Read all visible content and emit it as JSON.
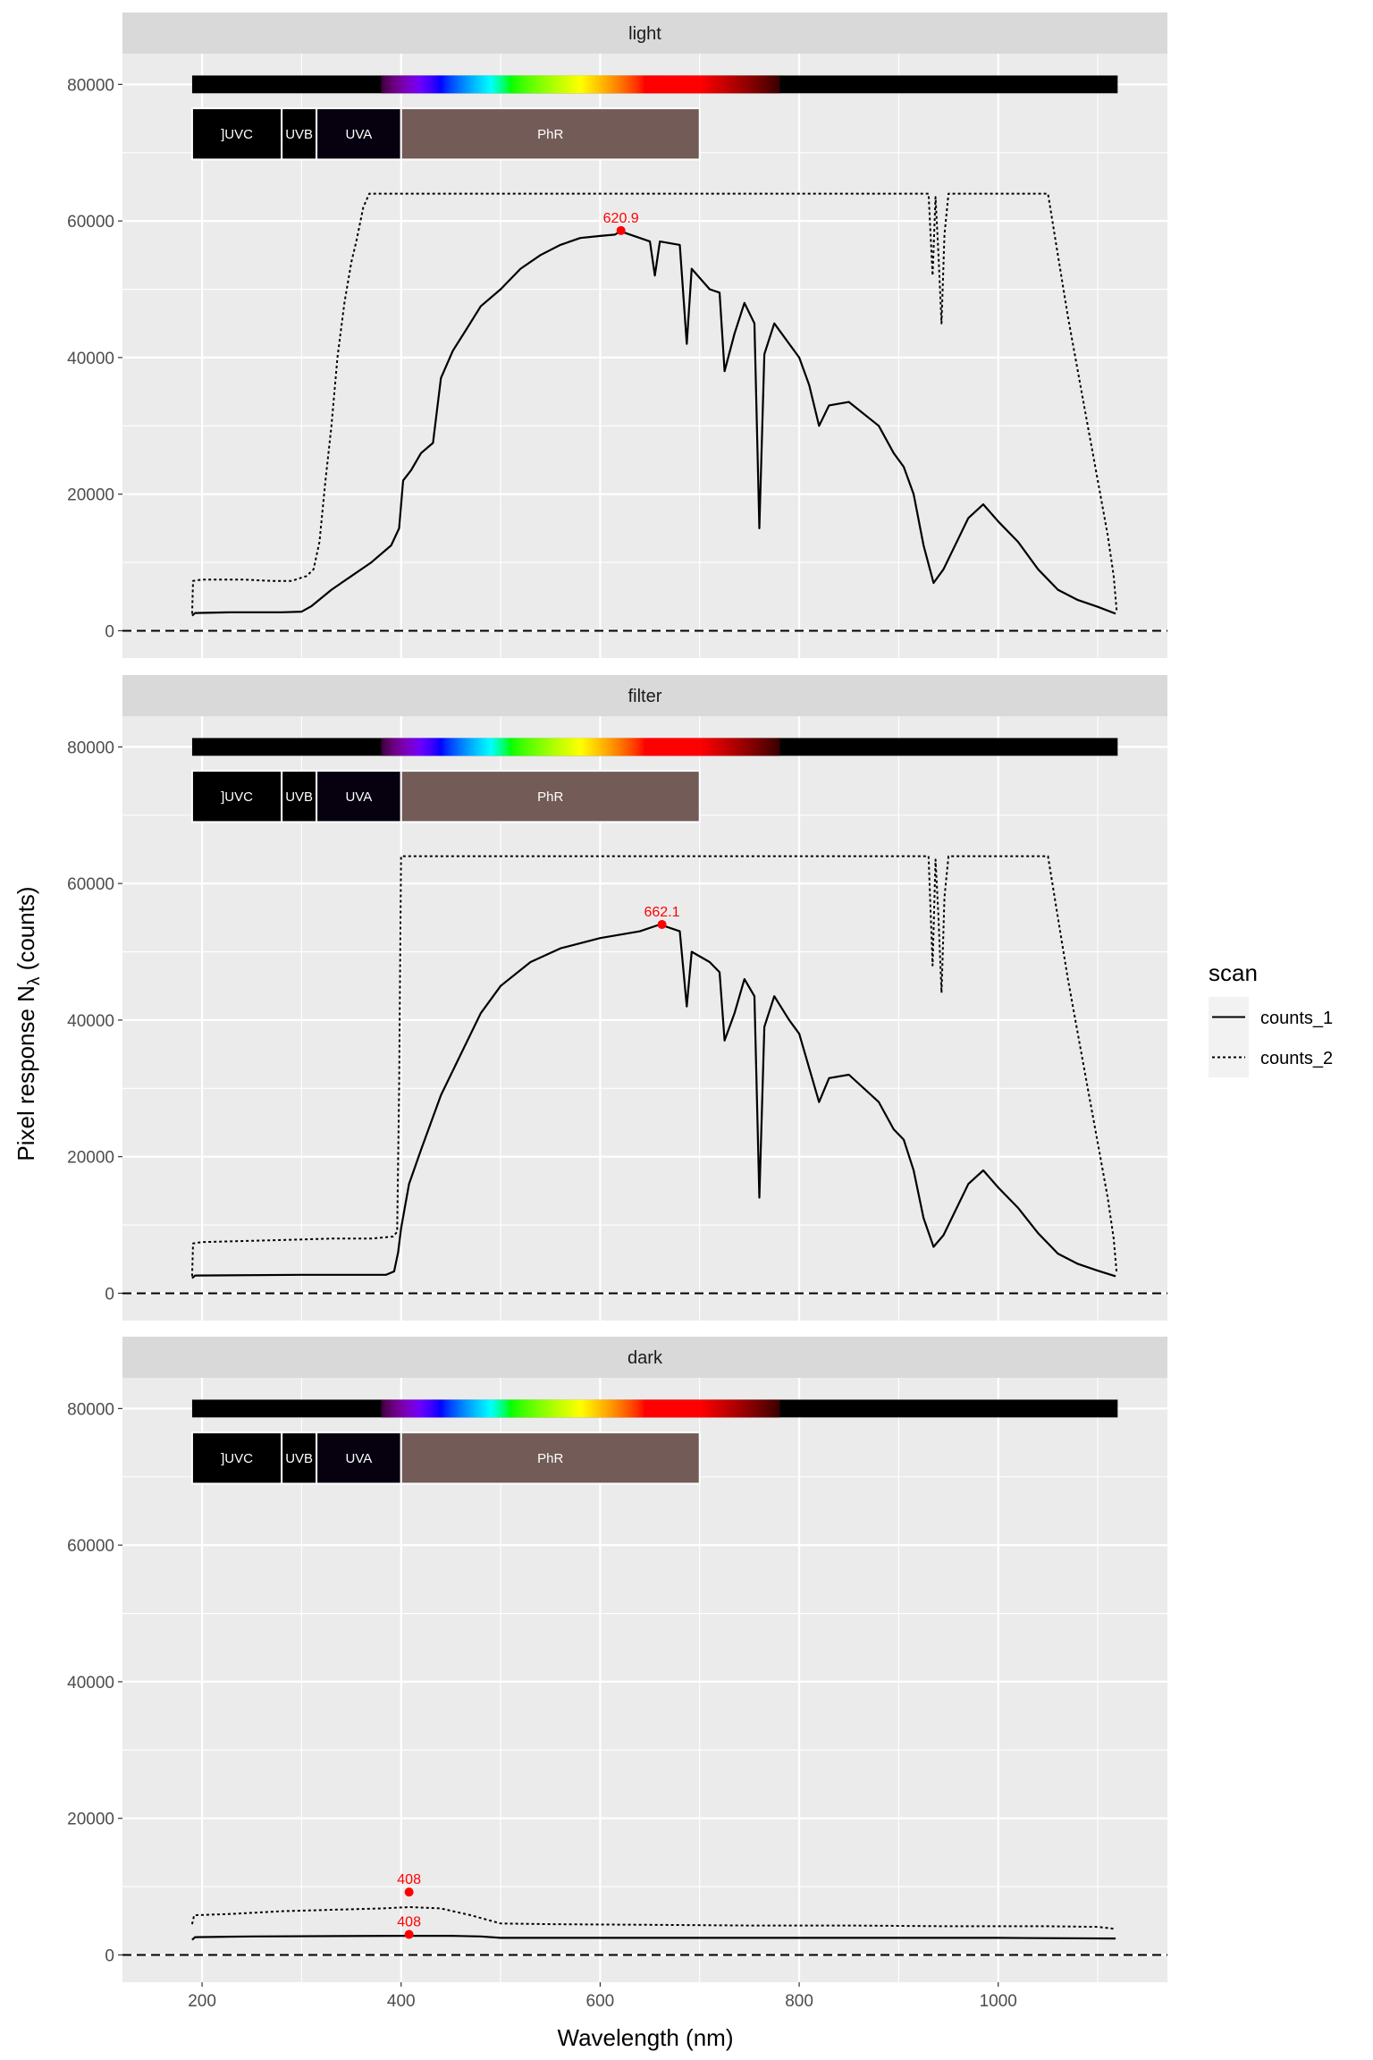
{
  "chart_data": {
    "type": "line",
    "xlabel": "Wavelength (nm)",
    "ylabel_parts": [
      "Pixel  response  N",
      "λ",
      "  (counts)"
    ],
    "xlim": [
      120,
      1170
    ],
    "ylim": [
      -4000,
      84500
    ],
    "xticks": [
      200,
      400,
      600,
      800,
      1000
    ],
    "yticks": [
      0,
      20000,
      40000,
      60000,
      80000
    ],
    "grid": true,
    "legend": {
      "title": "scan",
      "position": "right",
      "entries": [
        "counts_1",
        "counts_2"
      ]
    },
    "wavebands": [
      {
        "label": "]UVC",
        "start": 190,
        "end": 280,
        "color": "#000000"
      },
      {
        "label": "UVB",
        "start": 280,
        "end": 315,
        "color": "#000000"
      },
      {
        "label": "UVA",
        "start": 315,
        "end": 400,
        "color": "#06000f"
      },
      {
        "label": "PhR",
        "start": 400,
        "end": 700,
        "color": "#735b57"
      }
    ],
    "spectrum_bar": {
      "start": 190,
      "end": 1120,
      "y_low": 78700,
      "y_high": 81300
    },
    "band_row": {
      "y_low": 69000,
      "y_high": 76500
    },
    "reference_line": 0,
    "panels": [
      {
        "title": "light",
        "series": [
          {
            "name": "counts_1",
            "line": "solid",
            "points": [
              [
                190,
                2200
              ],
              [
                193,
                2600
              ],
              [
                230,
                2700
              ],
              [
                280,
                2700
              ],
              [
                300,
                2800
              ],
              [
                310,
                3600
              ],
              [
                330,
                6000
              ],
              [
                350,
                8000
              ],
              [
                370,
                10000
              ],
              [
                390,
                12500
              ],
              [
                398,
                15000
              ],
              [
                402,
                22000
              ],
              [
                410,
                23500
              ],
              [
                420,
                26000
              ],
              [
                432,
                27500
              ],
              [
                440,
                37000
              ],
              [
                452,
                41000
              ],
              [
                465,
                44000
              ],
              [
                480,
                47500
              ],
              [
                500,
                50000
              ],
              [
                520,
                53000
              ],
              [
                540,
                55000
              ],
              [
                560,
                56500
              ],
              [
                580,
                57500
              ],
              [
                600,
                57800
              ],
              [
                615,
                58000
              ],
              [
                620,
                58500
              ],
              [
                640,
                57500
              ],
              [
                650,
                57000
              ],
              [
                655,
                52000
              ],
              [
                660,
                57000
              ],
              [
                680,
                56500
              ],
              [
                687,
                42000
              ],
              [
                692,
                53000
              ],
              [
                710,
                50000
              ],
              [
                720,
                49500
              ],
              [
                725,
                38000
              ],
              [
                735,
                43500
              ],
              [
                745,
                48000
              ],
              [
                755,
                45000
              ],
              [
                760,
                15000
              ],
              [
                765,
                40500
              ],
              [
                775,
                45000
              ],
              [
                790,
                42000
              ],
              [
                800,
                40000
              ],
              [
                810,
                36000
              ],
              [
                820,
                30000
              ],
              [
                830,
                33000
              ],
              [
                850,
                33500
              ],
              [
                880,
                30000
              ],
              [
                895,
                26000
              ],
              [
                905,
                24000
              ],
              [
                915,
                20000
              ],
              [
                925,
                12500
              ],
              [
                935,
                7000
              ],
              [
                945,
                9000
              ],
              [
                955,
                12000
              ],
              [
                970,
                16500
              ],
              [
                985,
                18500
              ],
              [
                1000,
                16000
              ],
              [
                1020,
                13000
              ],
              [
                1040,
                9000
              ],
              [
                1060,
                6000
              ],
              [
                1080,
                4500
              ],
              [
                1100,
                3500
              ],
              [
                1118,
                2500
              ]
            ]
          },
          {
            "name": "counts_2",
            "line": "dotted",
            "points": [
              [
                190,
                2500
              ],
              [
                191,
                7300
              ],
              [
                200,
                7500
              ],
              [
                240,
                7500
              ],
              [
                270,
                7300
              ],
              [
                290,
                7300
              ],
              [
                305,
                8000
              ],
              [
                312,
                9000
              ],
              [
                318,
                13000
              ],
              [
                324,
                22000
              ],
              [
                330,
                30000
              ],
              [
                336,
                40000
              ],
              [
                343,
                48000
              ],
              [
                350,
                54000
              ],
              [
                355,
                57000
              ],
              [
                362,
                62000
              ],
              [
                368,
                64000
              ],
              [
                600,
                64000
              ],
              [
                930,
                64000
              ],
              [
                934,
                52000
              ],
              [
                937,
                63500
              ],
              [
                940,
                55000
              ],
              [
                943,
                45000
              ],
              [
                946,
                58000
              ],
              [
                950,
                64000
              ],
              [
                1050,
                64000
              ],
              [
                1060,
                55000
              ],
              [
                1070,
                46000
              ],
              [
                1080,
                38000
              ],
              [
                1090,
                30000
              ],
              [
                1100,
                22000
              ],
              [
                1110,
                14000
              ],
              [
                1116,
                8000
              ],
              [
                1119,
                3000
              ]
            ]
          }
        ],
        "peaks": [
          {
            "x": 620.9,
            "y": 58600,
            "label": "620.9"
          }
        ]
      },
      {
        "title": "filter",
        "series": [
          {
            "name": "counts_1",
            "line": "solid",
            "points": [
              [
                190,
                2200
              ],
              [
                193,
                2600
              ],
              [
                300,
                2700
              ],
              [
                385,
                2700
              ],
              [
                393,
                3200
              ],
              [
                397,
                6000
              ],
              [
                400,
                9500
              ],
              [
                408,
                16000
              ],
              [
                420,
                21000
              ],
              [
                440,
                29000
              ],
              [
                460,
                35000
              ],
              [
                480,
                41000
              ],
              [
                500,
                45000
              ],
              [
                530,
                48500
              ],
              [
                560,
                50500
              ],
              [
                600,
                52000
              ],
              [
                640,
                53000
              ],
              [
                660,
                54000
              ],
              [
                680,
                53000
              ],
              [
                687,
                42000
              ],
              [
                692,
                50000
              ],
              [
                710,
                48500
              ],
              [
                720,
                47000
              ],
              [
                725,
                37000
              ],
              [
                735,
                41000
              ],
              [
                745,
                46000
              ],
              [
                755,
                43500
              ],
              [
                760,
                14000
              ],
              [
                765,
                39000
              ],
              [
                775,
                43500
              ],
              [
                790,
                40000
              ],
              [
                800,
                38000
              ],
              [
                810,
                33000
              ],
              [
                820,
                28000
              ],
              [
                830,
                31500
              ],
              [
                850,
                32000
              ],
              [
                880,
                28000
              ],
              [
                895,
                24000
              ],
              [
                905,
                22500
              ],
              [
                915,
                18000
              ],
              [
                925,
                11000
              ],
              [
                935,
                6800
              ],
              [
                945,
                8500
              ],
              [
                955,
                11500
              ],
              [
                970,
                16000
              ],
              [
                985,
                18000
              ],
              [
                1000,
                15500
              ],
              [
                1020,
                12500
              ],
              [
                1040,
                8800
              ],
              [
                1060,
                5800
              ],
              [
                1080,
                4300
              ],
              [
                1100,
                3300
              ],
              [
                1118,
                2500
              ]
            ]
          },
          {
            "name": "counts_2",
            "line": "dotted",
            "points": [
              [
                190,
                2500
              ],
              [
                191,
                7300
              ],
              [
                200,
                7500
              ],
              [
                280,
                7800
              ],
              [
                330,
                8000
              ],
              [
                370,
                8000
              ],
              [
                392,
                8300
              ],
              [
                396,
                9000
              ],
              [
                398,
                30000
              ],
              [
                400,
                64000
              ],
              [
                600,
                64000
              ],
              [
                930,
                64000
              ],
              [
                934,
                48000
              ],
              [
                937,
                63500
              ],
              [
                940,
                55000
              ],
              [
                943,
                44000
              ],
              [
                946,
                58000
              ],
              [
                950,
                64000
              ],
              [
                1050,
                64000
              ],
              [
                1060,
                55000
              ],
              [
                1070,
                46000
              ],
              [
                1080,
                38000
              ],
              [
                1090,
                30000
              ],
              [
                1100,
                22000
              ],
              [
                1110,
                14000
              ],
              [
                1116,
                8000
              ],
              [
                1119,
                3000
              ]
            ]
          }
        ],
        "peaks": [
          {
            "x": 662.1,
            "y": 54000,
            "label": "662.1"
          }
        ]
      },
      {
        "title": "dark",
        "series": [
          {
            "name": "counts_1",
            "line": "solid",
            "points": [
              [
                190,
                2200
              ],
              [
                193,
                2600
              ],
              [
                250,
                2700
              ],
              [
                400,
                2800
              ],
              [
                450,
                2800
              ],
              [
                480,
                2700
              ],
              [
                500,
                2500
              ],
              [
                600,
                2500
              ],
              [
                800,
                2500
              ],
              [
                1000,
                2500
              ],
              [
                1118,
                2400
              ]
            ]
          },
          {
            "name": "counts_2",
            "line": "dotted",
            "points": [
              [
                190,
                4500
              ],
              [
                192,
                5800
              ],
              [
                230,
                6000
              ],
              [
                280,
                6400
              ],
              [
                330,
                6600
              ],
              [
                380,
                6800
              ],
              [
                408,
                7000
              ],
              [
                440,
                6800
              ],
              [
                470,
                5800
              ],
              [
                500,
                4600
              ],
              [
                550,
                4500
              ],
              [
                650,
                4400
              ],
              [
                750,
                4300
              ],
              [
                850,
                4300
              ],
              [
                950,
                4200
              ],
              [
                1050,
                4200
              ],
              [
                1100,
                4100
              ],
              [
                1118,
                3800
              ]
            ]
          }
        ],
        "peaks": [
          {
            "x": 408,
            "y": 9200,
            "label": "408"
          },
          {
            "x": 408,
            "y": 3000,
            "label": "408"
          }
        ]
      }
    ]
  }
}
